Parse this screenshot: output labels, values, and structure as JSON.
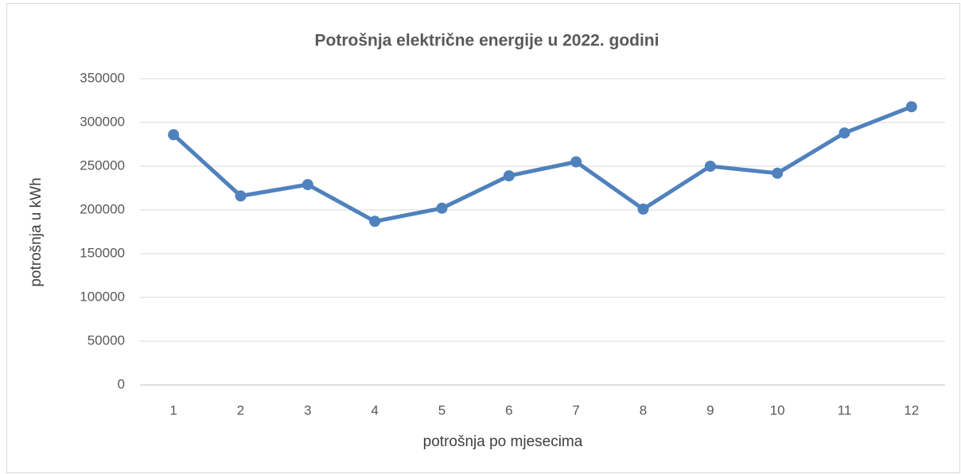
{
  "chart_data": {
    "type": "line",
    "title": "Potrošnja električne energije u 2022. godini",
    "x_label": "potrošnja po mjesecima",
    "y_label": "potrošnja u kWh",
    "categories": [
      "1",
      "2",
      "3",
      "4",
      "5",
      "6",
      "7",
      "8",
      "9",
      "10",
      "11",
      "12"
    ],
    "values": [
      286000,
      216000,
      229000,
      187000,
      202000,
      239000,
      255000,
      201000,
      250000,
      242000,
      288000,
      318000
    ],
    "color": "#4f81bd",
    "ylim": [
      0,
      350000
    ],
    "yticks": [
      0,
      50000,
      100000,
      150000,
      200000,
      250000,
      300000,
      350000
    ],
    "grid": true
  }
}
